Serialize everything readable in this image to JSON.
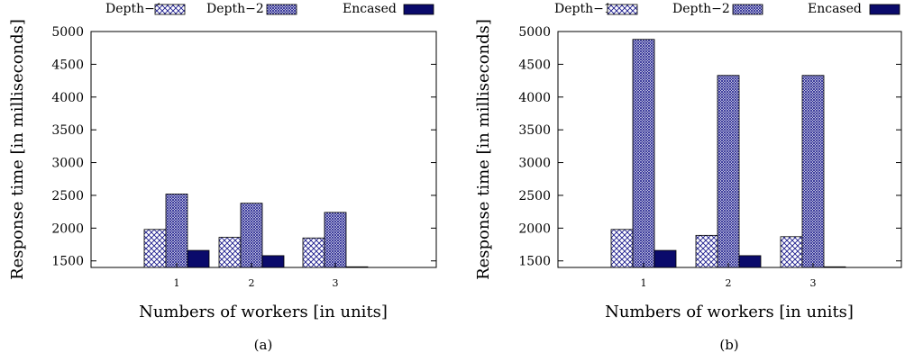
{
  "figure": {
    "legend_labels": [
      "Depth−1",
      "Depth−2",
      "Encased"
    ]
  },
  "chart_data": [
    {
      "type": "bar",
      "caption": "(a)",
      "categories": [
        "1",
        "2",
        "3"
      ],
      "series": [
        {
          "name": "Depth−1",
          "values": [
            1980,
            1860,
            1850
          ]
        },
        {
          "name": "Depth−2",
          "values": [
            2520,
            2380,
            2240
          ]
        },
        {
          "name": "Encased",
          "values": [
            1660,
            1580,
            1410
          ]
        }
      ],
      "xlabel": "Numbers of workers [in units]",
      "ylabel": "Response time [in milliseconds]",
      "ylim": [
        1400,
        5000
      ],
      "yticks": [
        "1500",
        "2000",
        "2500",
        "3000",
        "3500",
        "4000",
        "4500",
        "5000"
      ],
      "legend": "top",
      "grid": false
    },
    {
      "type": "bar",
      "caption": "(b)",
      "categories": [
        "1",
        "2",
        "3"
      ],
      "series": [
        {
          "name": "Depth−1",
          "values": [
            1980,
            1890,
            1870
          ]
        },
        {
          "name": "Depth−2",
          "values": [
            4880,
            4330,
            4330
          ]
        },
        {
          "name": "Encased",
          "values": [
            1660,
            1580,
            1410
          ]
        }
      ],
      "xlabel": "Numbers of workers [in units]",
      "ylabel": "Response time [in milliseconds]",
      "ylim": [
        1400,
        5000
      ],
      "yticks": [
        "1500",
        "2000",
        "2500",
        "3000",
        "3500",
        "4000",
        "4500",
        "5000"
      ],
      "legend": "top",
      "grid": false
    }
  ],
  "colors": {
    "encased": "#0a0a6b",
    "pattern": "#1c1c8c",
    "axis": "#000000"
  }
}
